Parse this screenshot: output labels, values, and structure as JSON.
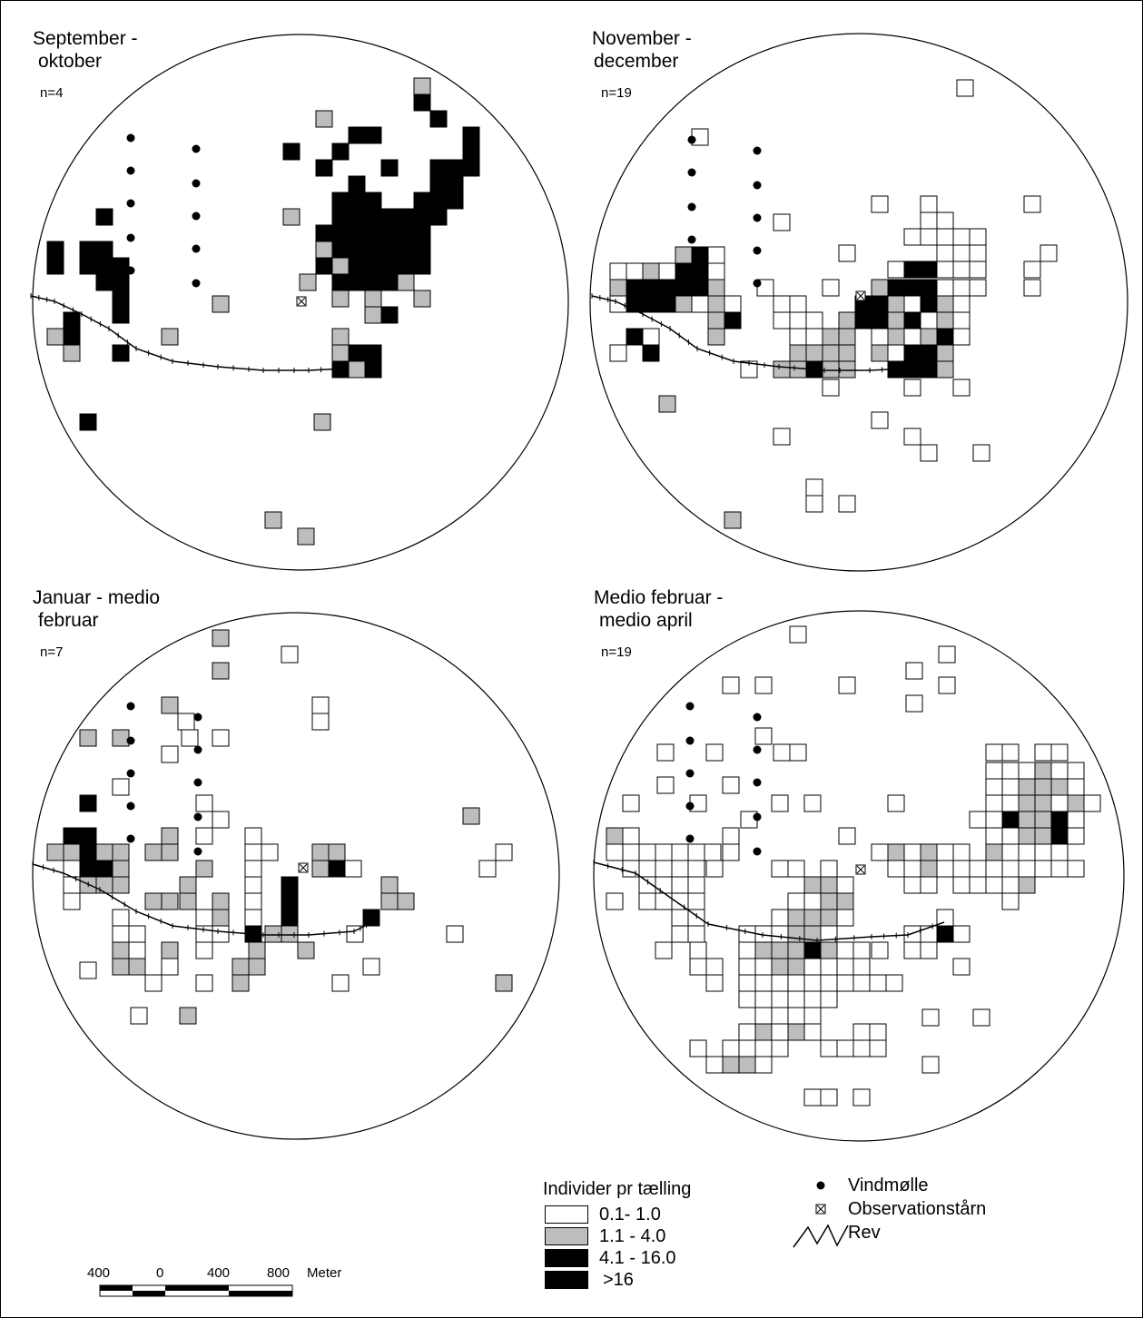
{
  "panels": [
    {
      "title_line1": "September -",
      "title_line2": "oktober",
      "n": "n=4"
    },
    {
      "title_line1": "November -",
      "title_line2": "december",
      "n": "n=19"
    },
    {
      "title_line1": "Januar - medio",
      "title_line2": "februar",
      "n": "n=7"
    },
    {
      "title_line1": "Medio februar -",
      "title_line2": "medio april",
      "n": "n=19"
    }
  ],
  "legend": {
    "density_title": "Individer pr tælling",
    "classes": [
      {
        "label": "0.1- 1.0",
        "color": "#ffffff"
      },
      {
        "label": "1.1 - 4.0",
        "color": "#bdbdbd"
      },
      {
        "label": "4.1 - 16.0",
        "color": "#000000"
      },
      {
        "label": ">16",
        "color": "#000000"
      }
    ],
    "symbols": [
      {
        "label": "Vindmølle",
        "icon": "filled-circle"
      },
      {
        "label": "Observationstårn",
        "icon": "boxed-x"
      },
      {
        "label": "Rev",
        "icon": "reef-line"
      }
    ]
  },
  "scalebar": {
    "ticks": [
      "400",
      "0",
      "400",
      "800"
    ],
    "unit": "Meter"
  }
}
